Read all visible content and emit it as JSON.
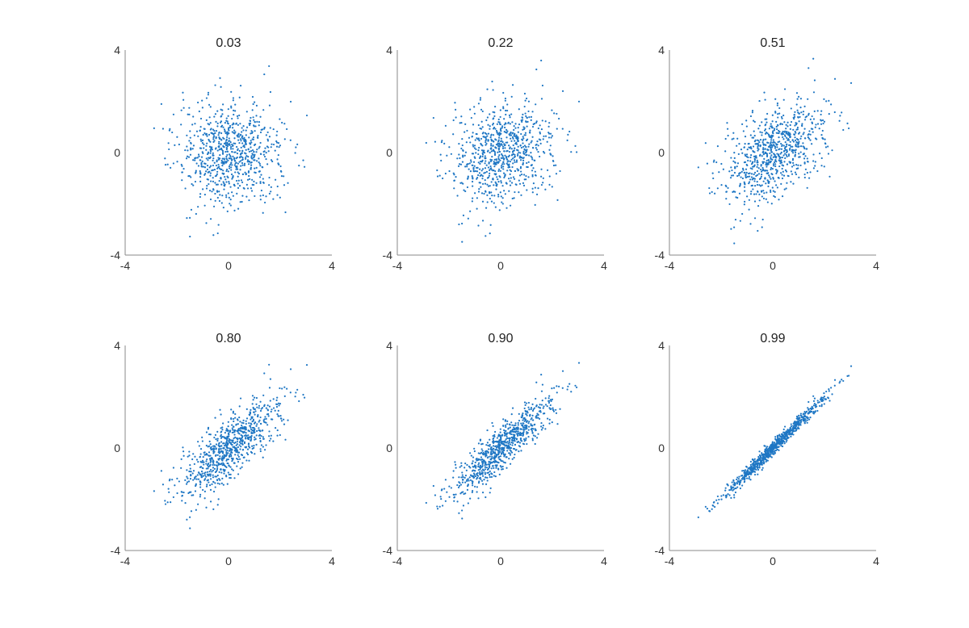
{
  "chart_data": [
    {
      "type": "scatter",
      "title": "0.03",
      "correlation": 0.03,
      "n_points": 800,
      "xlim": [
        -4,
        4
      ],
      "ylim": [
        -4,
        4
      ],
      "xticks": [
        "-4",
        "0",
        "4"
      ],
      "yticks": [
        "-4",
        "0",
        "4"
      ],
      "grid": false,
      "legend": "none",
      "marker_color": "#1f77c4"
    },
    {
      "type": "scatter",
      "title": "0.22",
      "correlation": 0.22,
      "n_points": 800,
      "xlim": [
        -4,
        4
      ],
      "ylim": [
        -4,
        4
      ],
      "xticks": [
        "-4",
        "0",
        "4"
      ],
      "yticks": [
        "-4",
        "0",
        "4"
      ],
      "grid": false,
      "legend": "none",
      "marker_color": "#1f77c4"
    },
    {
      "type": "scatter",
      "title": "0.51",
      "correlation": 0.51,
      "n_points": 800,
      "xlim": [
        -4,
        4
      ],
      "ylim": [
        -4,
        4
      ],
      "xticks": [
        "-4",
        "0",
        "4"
      ],
      "yticks": [
        "-4",
        "0",
        "4"
      ],
      "grid": false,
      "legend": "none",
      "marker_color": "#1f77c4"
    },
    {
      "type": "scatter",
      "title": "0.80",
      "correlation": 0.8,
      "n_points": 800,
      "xlim": [
        -4,
        4
      ],
      "ylim": [
        -4,
        4
      ],
      "xticks": [
        "-4",
        "0",
        "4"
      ],
      "yticks": [
        "-4",
        "0",
        "4"
      ],
      "grid": false,
      "legend": "none",
      "marker_color": "#1f77c4"
    },
    {
      "type": "scatter",
      "title": "0.90",
      "correlation": 0.9,
      "n_points": 800,
      "xlim": [
        -4,
        4
      ],
      "ylim": [
        -4,
        4
      ],
      "xticks": [
        "-4",
        "0",
        "4"
      ],
      "yticks": [
        "-4",
        "0",
        "4"
      ],
      "grid": false,
      "legend": "none",
      "marker_color": "#1f77c4"
    },
    {
      "type": "scatter",
      "title": "0.99",
      "correlation": 0.99,
      "n_points": 800,
      "xlim": [
        -4,
        4
      ],
      "ylim": [
        -4,
        4
      ],
      "xticks": [
        "-4",
        "0",
        "4"
      ],
      "yticks": [
        "-4",
        "0",
        "4"
      ],
      "grid": false,
      "legend": "none",
      "marker_color": "#1f77c4"
    }
  ]
}
